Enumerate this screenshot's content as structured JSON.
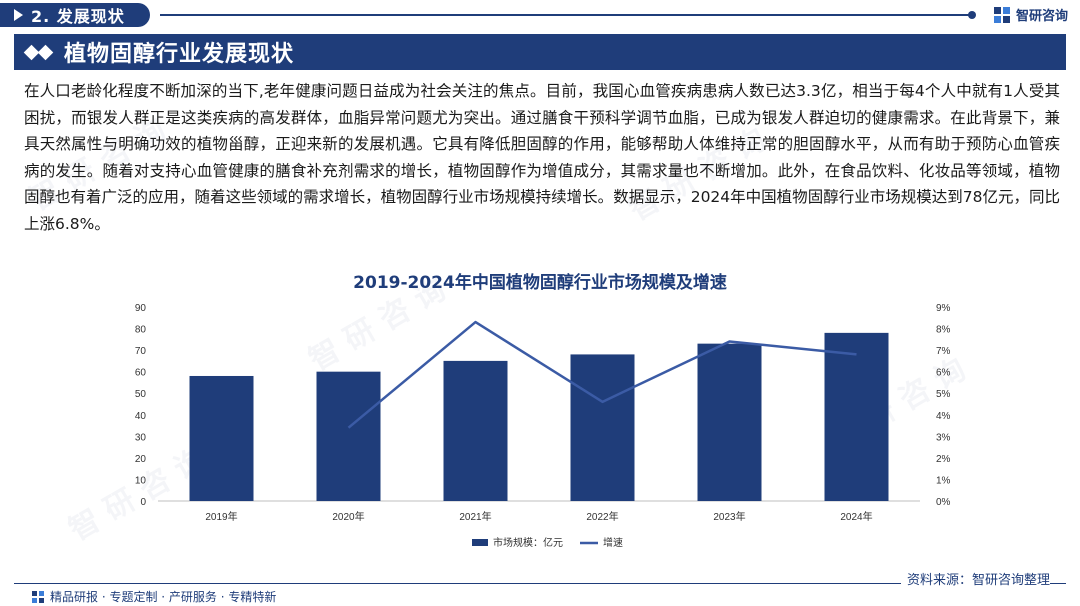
{
  "header": {
    "section_tag": "2. 发展现状",
    "brand": "智研咨询"
  },
  "banner": {
    "title": "植物固醇行业发展现状"
  },
  "paragraph": "在人口老龄化程度不断加深的当下,老年健康问题日益成为社会关注的焦点。目前，我国心血管疾病患病人数已达3.3亿，相当于每4个人中就有1人受其困扰，而银发人群正是这类疾病的高发群体，血脂异常问题尤为突出。通过膳食干预科学调节血脂，已成为银发人群迫切的健康需求。在此背景下，兼具天然属性与明确功效的植物甾醇，正迎来新的发展机遇。它具有降低胆固醇的作用，能够帮助人体维持正常的胆固醇水平，从而有助于预防心血管疾病的发生。随着对支持心血管健康的膳食补充剂需求的增长，植物固醇作为增值成分，其需求量也不断增加。此外，在食品饮料、化妆品等领域，植物固醇也有着广泛的应用，随着这些领域的需求增长，植物固醇行业市场规模持续增长。数据显示，2024年中国植物固醇行业市场规模达到78亿元，同比上涨6.8%。",
  "chart_data": {
    "type": "bar+line",
    "title": "2019-2024年中国植物固醇行业市场规模及增速",
    "categories": [
      "2019年",
      "2020年",
      "2021年",
      "2022年",
      "2023年",
      "2024年"
    ],
    "series": [
      {
        "name": "市场规模：亿元",
        "type": "bar",
        "axis": "left",
        "values": [
          58,
          60,
          65,
          68,
          73,
          78
        ],
        "color": "#1f3d7a"
      },
      {
        "name": "增速",
        "type": "line",
        "axis": "right",
        "values": [
          null,
          3.4,
          8.3,
          4.6,
          7.4,
          6.8
        ],
        "color": "#3b5ba5"
      }
    ],
    "y_left": {
      "min": 0,
      "max": 90,
      "ticks": [
        "0",
        "10",
        "20",
        "30",
        "40",
        "50",
        "60",
        "70",
        "80",
        "90"
      ]
    },
    "y_right": {
      "min": 0,
      "max": 9,
      "ticks": [
        "0%",
        "1%",
        "2%",
        "3%",
        "4%",
        "5%",
        "6%",
        "7%",
        "8%",
        "9%"
      ]
    },
    "grid": false,
    "legend_position": "bottom"
  },
  "footer": {
    "source": "资料来源：智研咨询整理",
    "slogan": "精品研报 · 专题定制 · 产研服务 · 专精特新"
  },
  "colors": {
    "brand": "#1f3d7a",
    "line": "#3b5ba5"
  }
}
